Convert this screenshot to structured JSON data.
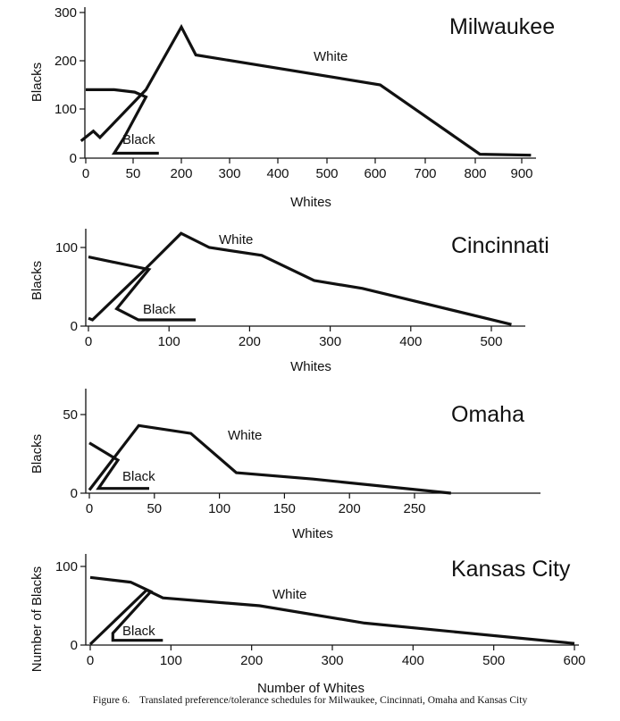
{
  "chart_data": [
    {
      "type": "line",
      "title": "Milwaukee",
      "xlabel": "Whites",
      "ylabel": "Blacks",
      "x_ticks": [
        0,
        50,
        200,
        300,
        400,
        500,
        600,
        700,
        800,
        900
      ],
      "y_ticks": [
        0,
        100,
        200,
        300
      ],
      "ylim": [
        0,
        300
      ],
      "series": [
        {
          "name": "White",
          "points": [
            [
              -5,
              35
            ],
            [
              8,
              55
            ],
            [
              15,
              42
            ],
            [
              90,
              140
            ],
            [
              200,
              270
            ],
            [
              230,
              212
            ],
            [
              610,
              150
            ],
            [
              810,
              8
            ],
            [
              920,
              6
            ]
          ]
        },
        {
          "name": "Black",
          "points": [
            [
              0,
              140
            ],
            [
              30,
              140
            ],
            [
              55,
              135
            ],
            [
              90,
              125
            ],
            [
              40,
              40
            ],
            [
              30,
              10
            ],
            [
              130,
              10
            ]
          ]
        }
      ]
    },
    {
      "type": "line",
      "title": "Cincinnati",
      "xlabel": "Whites",
      "ylabel": "Blacks",
      "x_ticks": [
        0,
        100,
        200,
        300,
        400,
        500
      ],
      "y_ticks": [
        0,
        100
      ],
      "ylim": [
        0,
        130
      ],
      "series": [
        {
          "name": "White",
          "points": [
            [
              0,
              10
            ],
            [
              5,
              8
            ],
            [
              70,
              72
            ],
            [
              115,
              118
            ],
            [
              150,
              100
            ],
            [
              215,
              90
            ],
            [
              280,
              58
            ],
            [
              340,
              48
            ],
            [
              525,
              2
            ]
          ]
        },
        {
          "name": "Black",
          "points": [
            [
              0,
              88
            ],
            [
              75,
              72
            ],
            [
              35,
              22
            ],
            [
              62,
              8
            ],
            [
              133,
              8
            ]
          ]
        }
      ]
    },
    {
      "type": "line",
      "title": "Omaha",
      "xlabel": "Whites",
      "ylabel": "Blacks",
      "x_ticks": [
        0,
        50,
        100,
        150,
        200,
        250
      ],
      "y_ticks": [
        0,
        50
      ],
      "ylim": [
        0,
        65
      ],
      "series": [
        {
          "name": "White",
          "points": [
            [
              0,
              2
            ],
            [
              38,
              43
            ],
            [
              78,
              38
            ],
            [
              113,
              13
            ],
            [
              172,
              9
            ],
            [
              278,
              0
            ]
          ]
        },
        {
          "name": "Black",
          "points": [
            [
              0,
              32
            ],
            [
              22,
              21
            ],
            [
              7,
              3
            ],
            [
              46,
              3
            ]
          ]
        }
      ]
    },
    {
      "type": "line",
      "title": "Kansas City",
      "xlabel": "Number of Whites",
      "ylabel": "Number of Blacks",
      "x_ticks": [
        0,
        100,
        200,
        300,
        400,
        500,
        600
      ],
      "y_ticks": [
        0,
        100
      ],
      "ylim": [
        0,
        125
      ],
      "series": [
        {
          "name": "White",
          "points": [
            [
              0,
              1
            ],
            [
              70,
              70
            ],
            [
              90,
              60
            ],
            [
              210,
              50
            ],
            [
              340,
              28
            ],
            [
              600,
              2
            ]
          ]
        },
        {
          "name": "Black",
          "points": [
            [
              0,
              86
            ],
            [
              50,
              80
            ],
            [
              75,
              68
            ],
            [
              28,
              15
            ],
            [
              28,
              6
            ],
            [
              90,
              6
            ]
          ]
        }
      ]
    }
  ],
  "caption": {
    "label": "Figure 6.",
    "text": "Translated preference/tolerance schedules for Milwaukee, Cincinnati, Omaha and Kansas City"
  }
}
